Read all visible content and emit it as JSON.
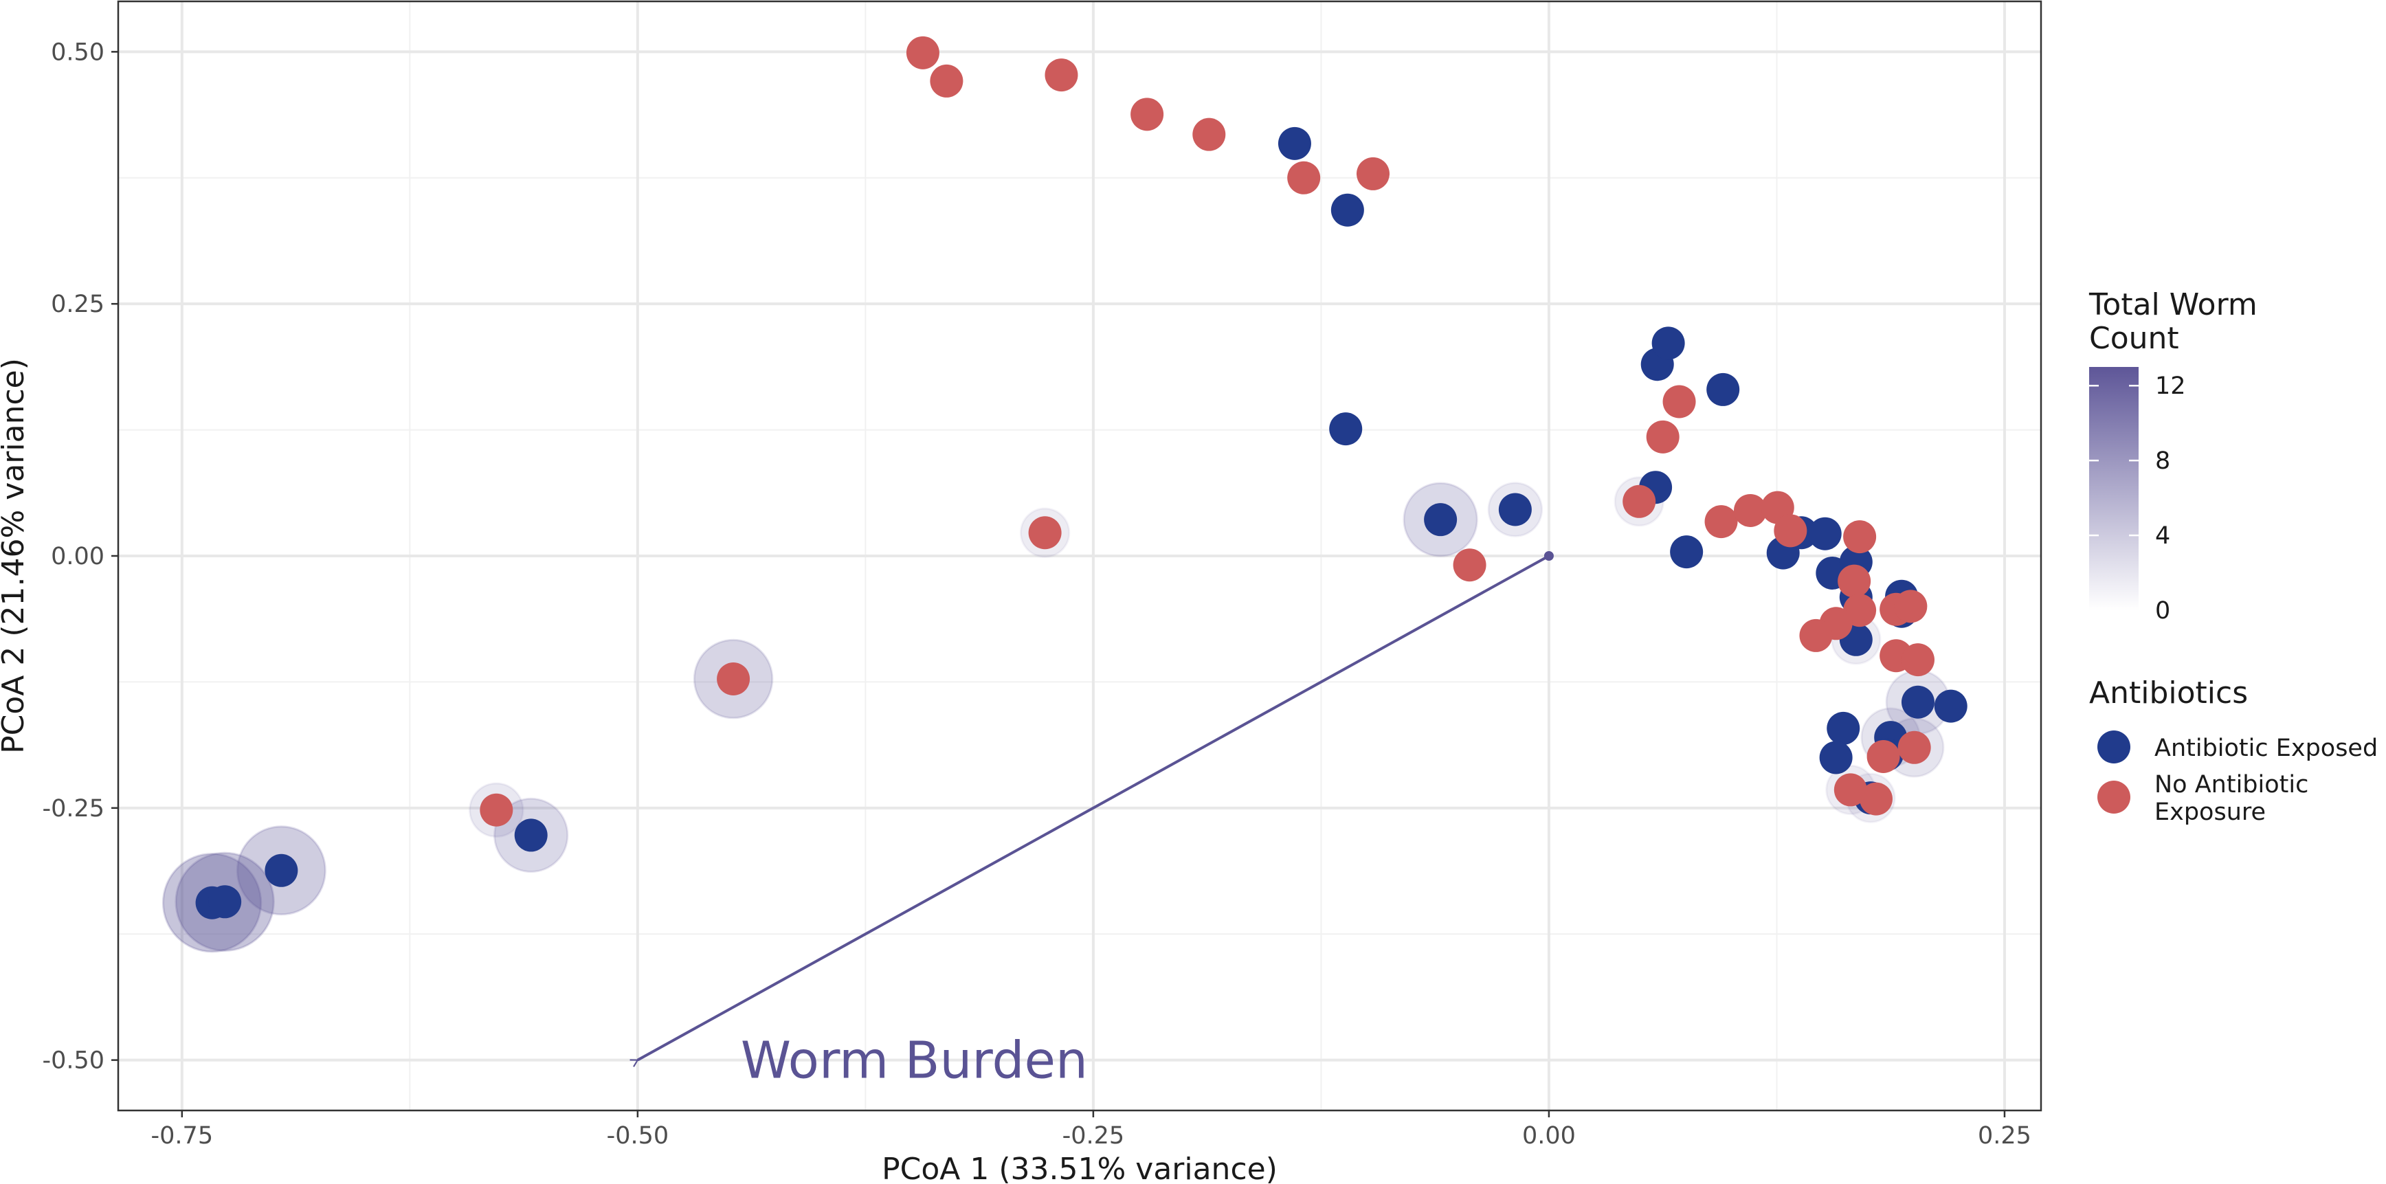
{
  "chart_data": {
    "type": "scatter",
    "xlabel": "PCoA 1 (33.51% variance)",
    "ylabel": "PCoA 2 (21.46% variance)",
    "xlim": [
      -0.785,
      0.27
    ],
    "ylim": [
      -0.55,
      0.55
    ],
    "x_ticks": [
      {
        "value": -0.75,
        "label": "-0.75"
      },
      {
        "value": -0.5,
        "label": "-0.50"
      },
      {
        "value": -0.25,
        "label": "-0.25"
      },
      {
        "value": 0,
        "label": "0.00"
      },
      {
        "value": 0.25,
        "label": "0.25"
      }
    ],
    "y_ticks": [
      {
        "value": 0.5,
        "label": "0.50"
      },
      {
        "value": 0.25,
        "label": "0.25"
      },
      {
        "value": 0,
        "label": "0.00"
      },
      {
        "value": -0.25,
        "label": "-0.25"
      },
      {
        "value": -0.5,
        "label": "-0.50"
      }
    ],
    "grid": true,
    "arrow": {
      "from": [
        0,
        0
      ],
      "to": [
        -0.5,
        -0.5
      ],
      "label": "Worm Burden",
      "color": "#5a5394"
    },
    "colors": {
      "exposed": "#213b8c",
      "unexposed": "#cd5b5b",
      "worm_high": "#5e5698",
      "worm_low": "#ffffff"
    },
    "legend": {
      "position": "right",
      "worm": {
        "title_lines": [
          "Total Worm",
          "Count"
        ],
        "ticks": [
          {
            "value": 12,
            "label": "12"
          },
          {
            "value": 8,
            "label": "8"
          },
          {
            "value": 4,
            "label": "4"
          },
          {
            "value": 0,
            "label": "0"
          }
        ],
        "max": 13
      },
      "antibiotics": {
        "title": "Antibiotics",
        "entries": [
          {
            "key": "exposed",
            "label_lines": [
              "Antibiotic Exposed"
            ]
          },
          {
            "key": "unexposed",
            "label_lines": [
              "No Antibiotic",
              "Exposure"
            ]
          }
        ]
      }
    },
    "series": [
      {
        "name": "Antibiotic Exposed",
        "group": "exposed",
        "points": [
          {
            "x": -0.7335,
            "y": -0.344,
            "worm": 12
          },
          {
            "x": -0.7265,
            "y": -0.343,
            "worm": 12
          },
          {
            "x": -0.6955,
            "y": -0.312,
            "worm": 10
          },
          {
            "x": -0.5585,
            "y": -0.277,
            "worm": 7
          },
          {
            "x": -0.1395,
            "y": 0.409,
            "worm": 0
          },
          {
            "x": -0.1105,
            "y": 0.343,
            "worm": 0
          },
          {
            "x": -0.1115,
            "y": 0.126,
            "worm": 0
          },
          {
            "x": -0.0595,
            "y": 0.036,
            "worm": 7
          },
          {
            "x": -0.0185,
            "y": 0.046,
            "worm": 3
          },
          {
            "x": 0.0585,
            "y": 0.068,
            "worm": 0
          },
          {
            "x": 0.0595,
            "y": 0.19,
            "worm": 0
          },
          {
            "x": 0.0655,
            "y": 0.211,
            "worm": 0
          },
          {
            "x": 0.0755,
            "y": 0.004,
            "worm": 0
          },
          {
            "x": 0.0955,
            "y": 0.165,
            "worm": 0
          },
          {
            "x": 0.1285,
            "y": 0.003,
            "worm": 0
          },
          {
            "x": 0.1385,
            "y": 0.023,
            "worm": 0
          },
          {
            "x": 0.1515,
            "y": 0.022,
            "worm": 0
          },
          {
            "x": 0.1555,
            "y": -0.017,
            "worm": 0
          },
          {
            "x": 0.1685,
            "y": -0.006,
            "worm": 0
          },
          {
            "x": 0.1685,
            "y": -0.041,
            "worm": 0
          },
          {
            "x": 0.1685,
            "y": -0.083,
            "worm": 2
          },
          {
            "x": 0.1935,
            "y": -0.04,
            "worm": 0
          },
          {
            "x": 0.1935,
            "y": -0.055,
            "worm": 0
          },
          {
            "x": 0.2025,
            "y": -0.145,
            "worm": 5
          },
          {
            "x": 0.2205,
            "y": -0.149,
            "worm": 0
          },
          {
            "x": 0.1615,
            "y": -0.171,
            "worm": 0
          },
          {
            "x": 0.1575,
            "y": -0.2,
            "worm": 0
          },
          {
            "x": 0.1875,
            "y": -0.18,
            "worm": 4
          },
          {
            "x": 0.1855,
            "y": -0.197,
            "worm": 0
          },
          {
            "x": 0.1765,
            "y": -0.24,
            "worm": 2
          }
        ]
      },
      {
        "name": "No Antibiotic Exposure",
        "group": "unexposed",
        "points": [
          {
            "x": -0.3435,
            "y": 0.499,
            "worm": 0
          },
          {
            "x": -0.3305,
            "y": 0.471,
            "worm": 0
          },
          {
            "x": -0.2675,
            "y": 0.477,
            "worm": 0
          },
          {
            "x": -0.2205,
            "y": 0.438,
            "worm": 0
          },
          {
            "x": -0.1865,
            "y": 0.418,
            "worm": 0
          },
          {
            "x": -0.1345,
            "y": 0.375,
            "worm": 0
          },
          {
            "x": -0.0965,
            "y": 0.379,
            "worm": 0
          },
          {
            "x": -0.2765,
            "y": 0.023,
            "worm": 2
          },
          {
            "x": -0.4475,
            "y": -0.122,
            "worm": 8
          },
          {
            "x": -0.5775,
            "y": -0.252,
            "worm": 3
          },
          {
            "x": -0.0435,
            "y": -0.009,
            "worm": 0
          },
          {
            "x": 0.0495,
            "y": 0.054,
            "worm": 2
          },
          {
            "x": 0.0625,
            "y": 0.118,
            "worm": 0
          },
          {
            "x": 0.0715,
            "y": 0.153,
            "worm": 0
          },
          {
            "x": 0.0945,
            "y": 0.034,
            "worm": 0
          },
          {
            "x": 0.1105,
            "y": 0.045,
            "worm": 0
          },
          {
            "x": 0.1255,
            "y": 0.048,
            "worm": 0
          },
          {
            "x": 0.1325,
            "y": 0.025,
            "worm": 0
          },
          {
            "x": 0.1705,
            "y": 0.019,
            "worm": 0
          },
          {
            "x": 0.1675,
            "y": -0.025,
            "worm": 0
          },
          {
            "x": 0.1705,
            "y": -0.054,
            "worm": 0
          },
          {
            "x": 0.1575,
            "y": -0.067,
            "worm": 0
          },
          {
            "x": 0.1465,
            "y": -0.079,
            "worm": 0
          },
          {
            "x": 0.1905,
            "y": -0.053,
            "worm": 0
          },
          {
            "x": 0.1985,
            "y": -0.05,
            "worm": 0
          },
          {
            "x": 0.1905,
            "y": -0.099,
            "worm": 0
          },
          {
            "x": 0.2025,
            "y": -0.103,
            "worm": 0
          },
          {
            "x": 0.2005,
            "y": -0.19,
            "worm": 4
          },
          {
            "x": 0.1835,
            "y": -0.199,
            "worm": 0
          },
          {
            "x": 0.1655,
            "y": -0.232,
            "worm": 2
          },
          {
            "x": 0.1795,
            "y": -0.241,
            "worm": 0
          }
        ]
      }
    ]
  }
}
